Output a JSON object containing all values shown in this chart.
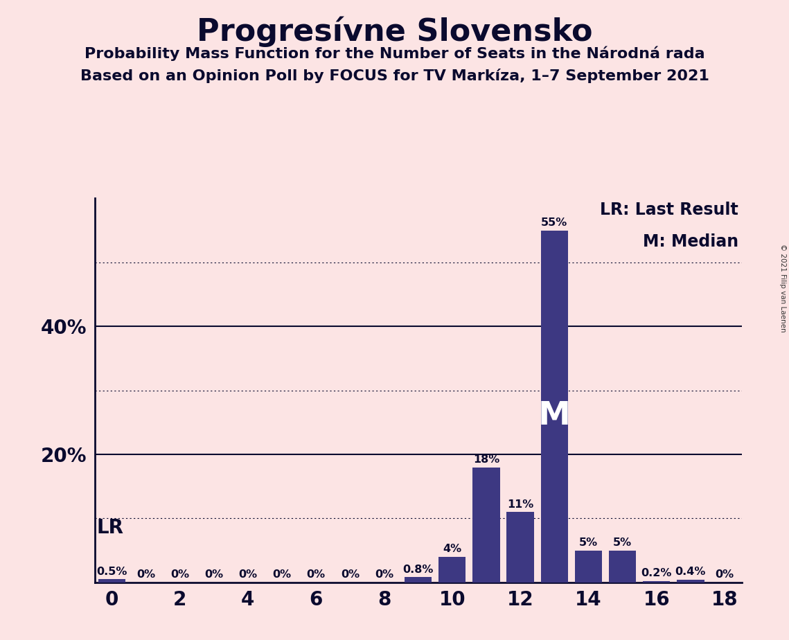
{
  "title": "Progresívne Slovensko",
  "subtitle1": "Probability Mass Function for the Number of Seats in the Národná rada",
  "subtitle2": "Based on an Opinion Poll by FOCUS for TV Markíza, 1–7 September 2021",
  "copyright": "© 2021 Filip van Laenen",
  "seats": [
    0,
    1,
    2,
    3,
    4,
    5,
    6,
    7,
    8,
    9,
    10,
    11,
    12,
    13,
    14,
    15,
    16,
    17,
    18
  ],
  "probabilities": [
    0.5,
    0.0,
    0.0,
    0.0,
    0.0,
    0.0,
    0.0,
    0.0,
    0.0,
    0.8,
    4.0,
    18.0,
    11.0,
    55.0,
    5.0,
    5.0,
    0.2,
    0.4,
    0.0
  ],
  "labels": [
    "0.5%",
    "0%",
    "0%",
    "0%",
    "0%",
    "0%",
    "0%",
    "0%",
    "0%",
    "0.8%",
    "4%",
    "18%",
    "11%",
    "55%",
    "5%",
    "5%",
    "0.2%",
    "0.4%",
    "0%"
  ],
  "bar_color": "#3d3882",
  "background_color": "#fce4e4",
  "lr_seat": 0,
  "median_seat": 13,
  "xlim": [
    -0.5,
    18.5
  ],
  "ylim": [
    0,
    60
  ],
  "ytick_solid": [
    20,
    40
  ],
  "ytick_dotted": [
    10,
    30,
    50
  ],
  "xticks": [
    0,
    2,
    4,
    6,
    8,
    10,
    12,
    14,
    16,
    18
  ],
  "lr_label": "LR",
  "median_label": "M",
  "legend_lr": "LR: Last Result",
  "legend_m": "M: Median",
  "title_fontsize": 32,
  "subtitle_fontsize": 16,
  "label_fontsize": 11.5,
  "axis_fontsize": 20,
  "ytick_fontsize": 20,
  "legend_fontsize": 17,
  "lr_label_fontsize": 20,
  "median_label_fontsize": 34
}
